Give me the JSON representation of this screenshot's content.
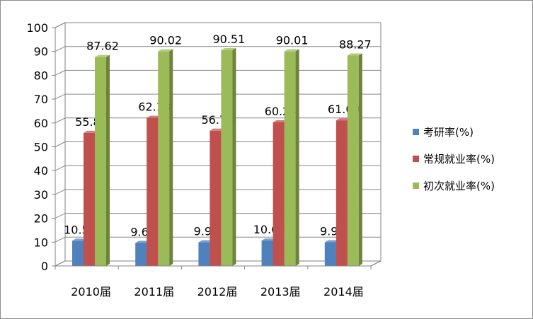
{
  "chart_data": {
    "type": "bar",
    "categories": [
      "2010届",
      "2011届",
      "2012届",
      "2013届",
      "2014届"
    ],
    "series": [
      {
        "name": "考研率(%)",
        "values": [
          10.57,
          9.65,
          9.91,
          10.66,
          9.94
        ],
        "color": "#4f81bd"
      },
      {
        "name": "常规就业率(%)",
        "values": [
          55.82,
          62.13,
          56.74,
          60.24,
          61.09
        ],
        "color": "#c0504d"
      },
      {
        "name": "初次就业率(%)",
        "values": [
          87.62,
          90.02,
          90.51,
          90.01,
          88.27
        ],
        "color": "#9bbb59"
      }
    ],
    "yticks": [
      "0",
      "10",
      "20",
      "30",
      "40",
      "50",
      "60",
      "70",
      "80",
      "90",
      "100"
    ],
    "ylim": [
      0,
      100
    ],
    "grid": true,
    "legend": "right",
    "style": "3d"
  }
}
